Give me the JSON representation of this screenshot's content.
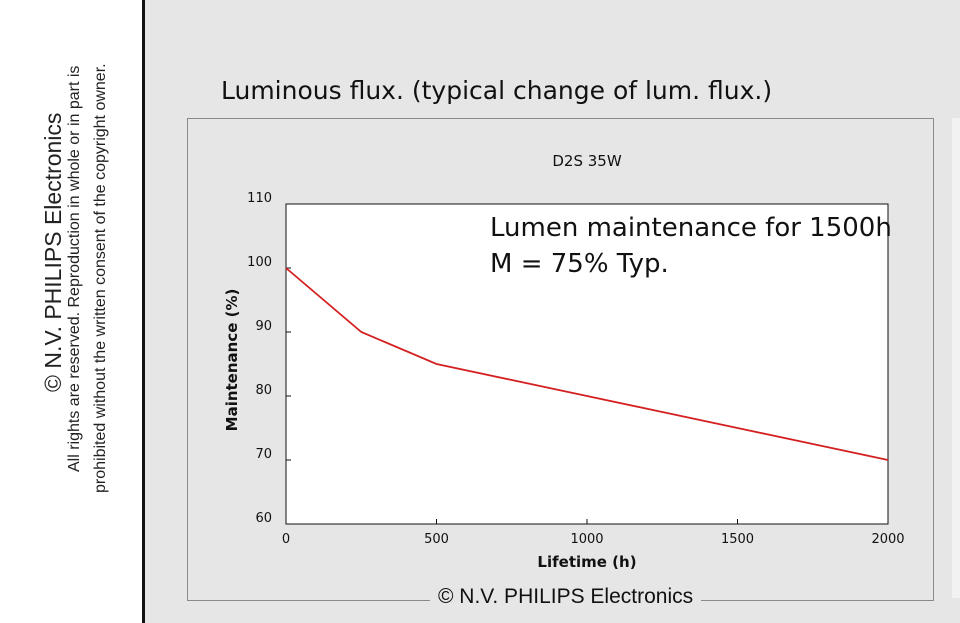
{
  "sidebar": {
    "copyright": "© N.V. PHILIPS Electronics",
    "rights_line1": "All rights are reserved. Reproduction in whole or in part is",
    "rights_line2": "prohibited without the written consent of the copyright owner."
  },
  "page": {
    "title": "Luminous flux. (typical change of lum. flux.)",
    "footer_copyright": "© N.V. PHILIPS Electronics"
  },
  "colors": {
    "line": "#d42020",
    "background": "#e6e6e6",
    "plot_background": "#ffffff"
  },
  "chart_data": {
    "type": "line",
    "title": "D2S 35W",
    "xlabel": "Lifetime (h)",
    "ylabel": "Maintenance (%)",
    "xlim": [
      0,
      2000
    ],
    "ylim": [
      60,
      110
    ],
    "xticks": [
      0,
      500,
      1000,
      1500,
      2000
    ],
    "yticks": [
      60,
      70,
      80,
      90,
      100,
      110
    ],
    "grid": false,
    "annotation": [
      "Lumen maintenance for 1500h",
      "M = 75% Typ."
    ],
    "series": [
      {
        "x": [
          0,
          250,
          500,
          750,
          1000,
          1250,
          1500,
          1750,
          2000
        ],
        "y": [
          100,
          90,
          85,
          82.5,
          80,
          77.5,
          75,
          72.5,
          70
        ]
      }
    ]
  }
}
